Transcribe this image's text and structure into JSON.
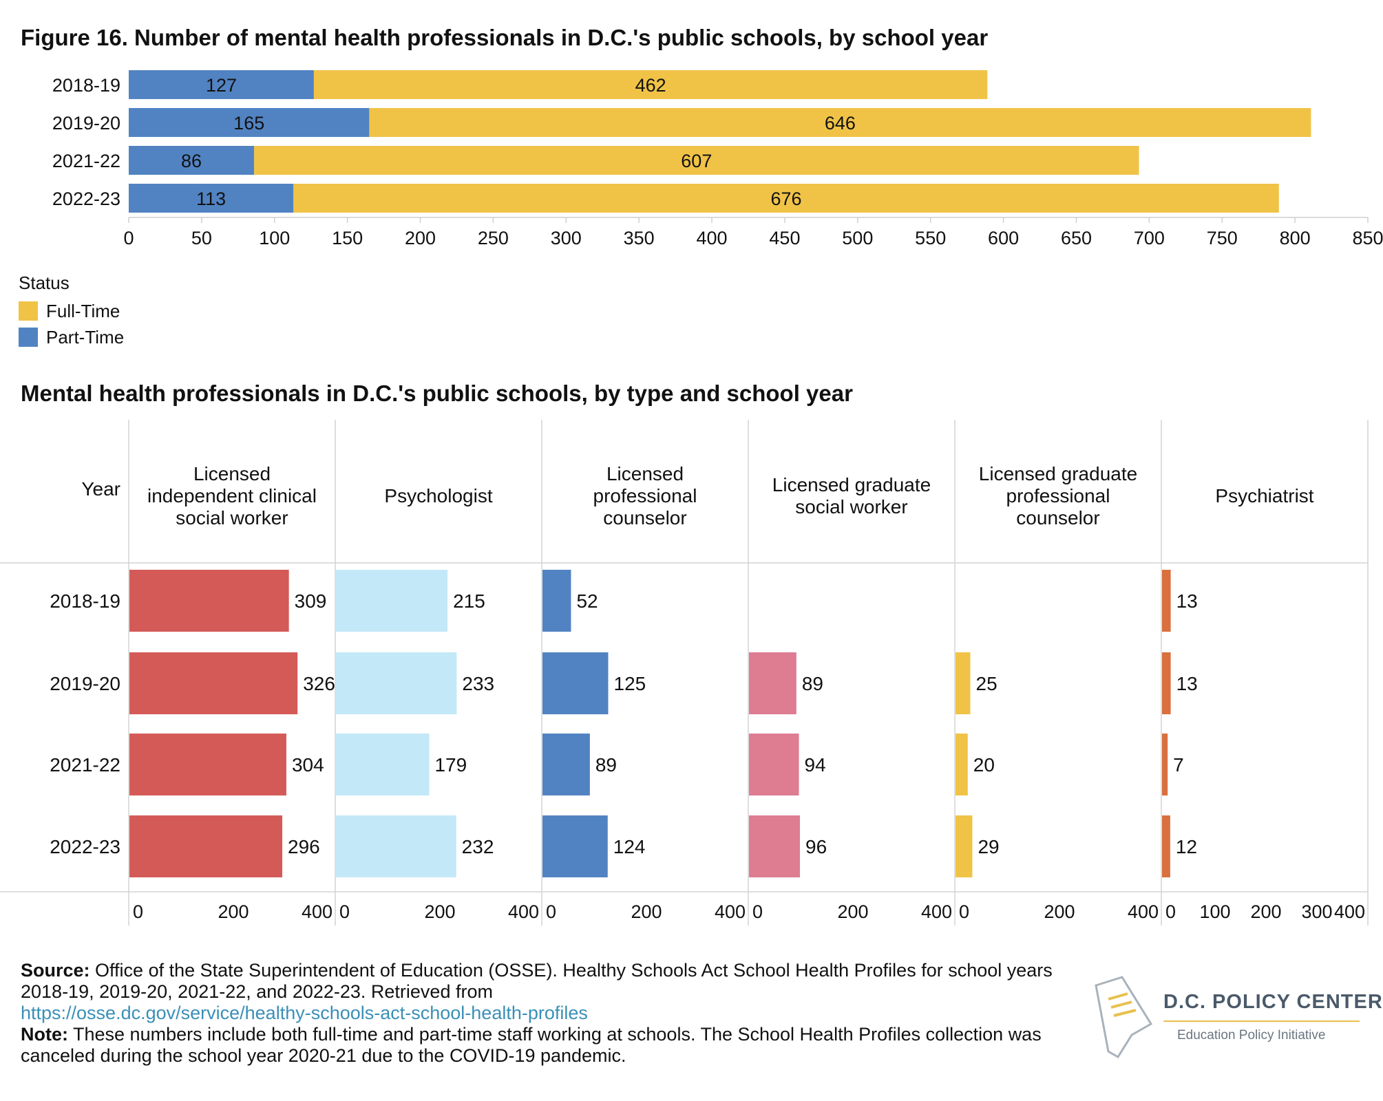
{
  "figure1": {
    "title": "Figure 16. Number of mental health professionals in D.C.'s public schools, by school year",
    "legend_title": "Status",
    "legend": [
      {
        "label": "Full-Time",
        "color": "#f0c347"
      },
      {
        "label": "Part-Time",
        "color": "#5183c2"
      }
    ]
  },
  "figure2": {
    "title": "Mental health professionals in D.C.'s public schools, by type and school year",
    "year_header": "Year"
  },
  "chart_data": [
    {
      "type": "bar",
      "orientation": "horizontal",
      "stacked": true,
      "categories": [
        "2018-19",
        "2019-20",
        "2021-22",
        "2022-23"
      ],
      "series": [
        {
          "name": "Part-Time",
          "color": "#5183c2",
          "values": [
            127,
            165,
            86,
            113
          ]
        },
        {
          "name": "Full-Time",
          "color": "#f0c347",
          "values": [
            462,
            646,
            607,
            676
          ]
        }
      ],
      "xlim": [
        0,
        850
      ],
      "xticks": [
        0,
        50,
        100,
        150,
        200,
        250,
        300,
        350,
        400,
        450,
        500,
        550,
        600,
        650,
        700,
        750,
        800,
        850
      ],
      "legend_title": "Status",
      "legend_position": "bottom-left"
    },
    {
      "type": "bar",
      "orientation": "horizontal",
      "small_multiples": true,
      "categories": [
        "2018-19",
        "2019-20",
        "2021-22",
        "2022-23"
      ],
      "panels": [
        {
          "label": "Licensed independent clinical social worker",
          "label_lines": [
            "Licensed",
            "independent clinical",
            "social worker"
          ],
          "color": "#d45a57",
          "values": [
            309,
            326,
            304,
            296
          ],
          "xticks": [
            0,
            200,
            400
          ]
        },
        {
          "label": "Psychologist",
          "label_lines": [
            "Psychologist"
          ],
          "color": "#c3e8f8",
          "values": [
            215,
            233,
            179,
            232
          ],
          "xticks": [
            0,
            200,
            400
          ]
        },
        {
          "label": "Licensed professional counselor",
          "label_lines": [
            "Licensed",
            "professional",
            "counselor"
          ],
          "color": "#5183c2",
          "values": [
            52,
            125,
            89,
            124
          ],
          "xticks": [
            0,
            200,
            400
          ]
        },
        {
          "label": "Licensed graduate social worker",
          "label_lines": [
            "Licensed graduate",
            "social worker"
          ],
          "color": "#de7c92",
          "values": [
            null,
            89,
            94,
            96
          ],
          "xticks": [
            0,
            200,
            400
          ]
        },
        {
          "label": "Licensed graduate professional counselor",
          "label_lines": [
            "Licensed graduate",
            "professional",
            "counselor"
          ],
          "color": "#f0c347",
          "values": [
            null,
            25,
            20,
            29
          ],
          "xticks": [
            0,
            200,
            400
          ]
        },
        {
          "label": "Psychiatrist",
          "label_lines": [
            "Psychiatrist"
          ],
          "color": "#d9703e",
          "values": [
            13,
            13,
            7,
            12
          ],
          "xticks": [
            0,
            100,
            200,
            300,
            400
          ]
        }
      ]
    }
  ],
  "footer": {
    "source_label": "Source:",
    "source_text": " Office of the State Superintendent of Education (OSSE). Healthy Schools Act School Health Profiles for school years 2018-19, 2019-20, 2021-22, and 2022-23. Retrieved from",
    "source_link": "https://osse.dc.gov/service/healthy-schools-act-school-health-profiles",
    "note_label": "Note:",
    "note_text": " These numbers include both full-time and part-time staff working at schools. The School Health Profiles collection was canceled during the school year 2020-21 due to the COVID-19 pandemic."
  },
  "logo": {
    "name": "D.C. POLICY CENTER",
    "subtitle": "Education Policy Initiative"
  }
}
